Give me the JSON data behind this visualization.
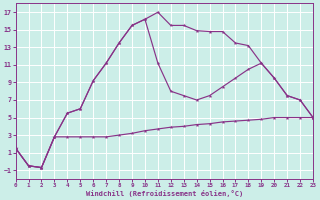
{
  "xlabel": "Windchill (Refroidissement éolien,°C)",
  "bg_color": "#cceee8",
  "grid_color": "#aaddcc",
  "line_color": "#883388",
  "xlim": [
    0,
    23
  ],
  "ylim": [
    -2,
    18
  ],
  "xticks": [
    0,
    1,
    2,
    3,
    4,
    5,
    6,
    7,
    8,
    9,
    10,
    11,
    12,
    13,
    14,
    15,
    16,
    17,
    18,
    19,
    20,
    21,
    22,
    23
  ],
  "yticks": [
    -1,
    1,
    3,
    5,
    7,
    9,
    11,
    13,
    15,
    17
  ],
  "line1_x": [
    0,
    1,
    2,
    3,
    4,
    5,
    6,
    7,
    8,
    9,
    10,
    11,
    12,
    13,
    14,
    15,
    16,
    17,
    18,
    19,
    20,
    21,
    22,
    23
  ],
  "line1_y": [
    1.5,
    -0.5,
    -0.7,
    2.8,
    5.5,
    6.0,
    9.2,
    11.2,
    13.5,
    15.5,
    16.2,
    17.0,
    15.5,
    15.5,
    14.9,
    14.8,
    14.8,
    13.5,
    13.2,
    11.2,
    9.5,
    7.5,
    7.0,
    5.0
  ],
  "line2_x": [
    0,
    1,
    2,
    3,
    4,
    5,
    6,
    7,
    8,
    9,
    10,
    11,
    12,
    13,
    14,
    15,
    16,
    17,
    18,
    19,
    20,
    21,
    22,
    23
  ],
  "line2_y": [
    1.5,
    -0.5,
    -0.7,
    2.8,
    5.5,
    6.0,
    9.2,
    11.2,
    13.5,
    15.5,
    16.2,
    11.2,
    8.0,
    7.5,
    7.0,
    7.5,
    8.5,
    9.5,
    10.5,
    11.2,
    9.5,
    7.5,
    7.0,
    5.0
  ],
  "line3_x": [
    0,
    1,
    2,
    3,
    4,
    5,
    6,
    7,
    8,
    9,
    10,
    11,
    12,
    13,
    14,
    15,
    16,
    17,
    18,
    19,
    20,
    21,
    22,
    23
  ],
  "line3_y": [
    1.5,
    -0.5,
    -0.7,
    2.8,
    2.8,
    2.8,
    2.8,
    2.8,
    3.0,
    3.2,
    3.5,
    3.7,
    3.9,
    4.0,
    4.2,
    4.3,
    4.5,
    4.6,
    4.7,
    4.8,
    5.0,
    5.0,
    5.0,
    5.0
  ]
}
